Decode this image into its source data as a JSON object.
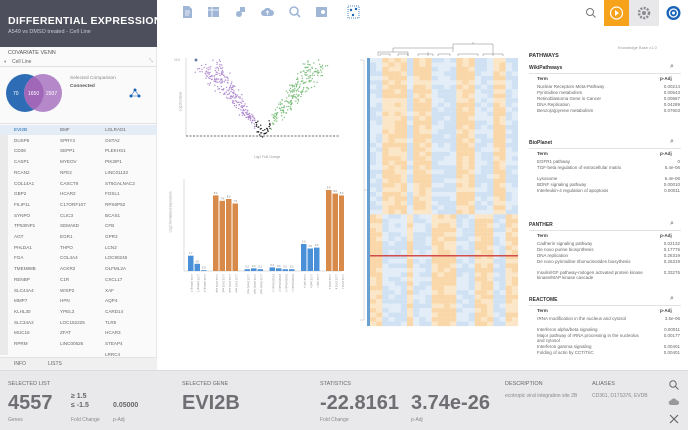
{
  "app": {
    "title": "DIFFERENTIAL EXPRESSION",
    "subtitle": "A549 vs DMSO treated - Cell Line"
  },
  "sidebar": {
    "venn_heading": "COVARIATE VENN",
    "cell_dropdown": "Cell Line",
    "venn": {
      "left": "70",
      "center": "1650",
      "right": "2937"
    },
    "selected_comparison_label": "Selected Comparison",
    "selected_comparison_value": "Connected",
    "genes_col1": [
      "EVI2B",
      "DUSP6",
      "CD36",
      "CASP1",
      "RCAN2",
      "COL14A1",
      "GBP2",
      "FILIP1L",
      "SYNPO",
      "TP53INP1",
      "AGT",
      "PHLDA1",
      "FGA",
      "TMEM88B",
      "RENBP",
      "SLC44A4",
      "MMP7",
      "KLHL30",
      "SLC34A2",
      "MUC16",
      "RPRM"
    ],
    "genes_col2": [
      "BMF",
      "SPRY4",
      "SEPP1",
      "MYEOV",
      "NFE2",
      "CASCT9",
      "HCAR2",
      "C17ORF107",
      "CLIC3",
      "SEMA6D",
      "EGR1",
      "THPO",
      "COL4A4",
      "ACKR2",
      "C1R",
      "WISP2",
      "HPN",
      "YPEL3",
      "LOC152225",
      "ZFAT",
      "LINC00626"
    ],
    "genes_col3": [
      "LGLRAD1",
      "OSTA2",
      "PLEKHS1",
      "PIK3IP1",
      "LINC01133",
      "ST6GALNAC2",
      "FOSL1",
      "RPS6P52",
      "BCAS1",
      "CFB",
      "GPR3",
      "LCN2",
      "LOC90246",
      "OLFML2A",
      "CXCL17",
      "XAF",
      "AQP4",
      "CARD14",
      "TLR5",
      "HCAR3",
      "STEAP4",
      "LRRC4"
    ],
    "tabs": [
      "INFO",
      "LISTS"
    ]
  },
  "toolbar": {
    "icons": [
      "document-icon",
      "table-icon",
      "shapes-icon",
      "cloud-upload-icon",
      "search-zoom-icon",
      "settings-panel-icon",
      "network-icon"
    ],
    "right": [
      "search-icon",
      "play-icon",
      "gear-icon",
      "logo-icon"
    ],
    "colors": {
      "accent": "#f7a21b",
      "brand": "#1a63b6"
    }
  },
  "volcano": {
    "xlabel": "Log2 Fold Change",
    "ylabel": "-Log10 pValue",
    "ytop": "10.0",
    "note": "Knowledge Base v1.0"
  },
  "bars": {
    "chart_data": {
      "type": "bar",
      "ylabel": "Log2 Normalised Expression",
      "groups": [
        {
          "categories": [
            "LUDE (ctrl/rep) 1",
            "LUDE (ctrl/rep) 2",
            "LUDE (ctrl/rep) 3"
          ],
          "values": [
            1.7,
            0.8,
            0.0
          ],
          "color": "#4a90d9"
        },
        {
          "categories": [
            "LUDE EVS1 rep1",
            "LUDE EVS1 rep2",
            "LUDE EVS1 rep3",
            "LUDE EVS1 rep4"
          ],
          "values": [
            8.4,
            7.8,
            8.0,
            7.5
          ],
          "color": "#d88a4a"
        },
        {
          "categories": [
            "LUDE (Mock) rep1",
            "LUDE (Mock) rep2",
            "LUDE (Mock) rep3"
          ],
          "values": [
            0.2,
            0.3,
            0.2
          ],
          "color": "#4a90d9"
        },
        {
          "categories": [
            "EVS1B (Mock) 1",
            "EVS1B (Mock) 2",
            "EVS1B (Mock) 3",
            "EVS1B (Mock) 4"
          ],
          "values": [
            0.4,
            0.3,
            0.2,
            0.2
          ],
          "color": "#4a90d9"
        },
        {
          "categories": [
            "LUDE (ctrl) a",
            "LUDE (ctrl) b",
            "LUDE (ctrl) c"
          ],
          "values": [
            3.0,
            2.5,
            2.6
          ],
          "color": "#4a90d9"
        },
        {
          "categories": [
            "LUDE EVS1 a",
            "LUDE EVS1 b",
            "LUDE EVS1 c"
          ],
          "values": [
            9.0,
            8.6,
            8.4
          ],
          "color": "#d88a4a"
        }
      ]
    }
  },
  "pathways": {
    "title": "PATHWAYS",
    "tables": [
      {
        "name": "WikiPathways",
        "head": [
          "Term",
          "p-Adj"
        ],
        "rows": [
          [
            "Nuclear Receptors Meta-Pathway",
            "0.00214"
          ],
          [
            "Pyrimidine metabolism",
            "0.00543"
          ],
          [
            "Retinoblastoma Gene in Cancer",
            "0.00667"
          ],
          [
            "DNA Replication",
            "0.04289"
          ],
          [
            "Benzo(a)pyrene metabolism",
            "0.07603"
          ]
        ]
      },
      {
        "name": "BioPlanet",
        "head": [
          "Term",
          "p-Adj"
        ],
        "rows": [
          [
            "EGFR1 pathway",
            "0"
          ],
          [
            "TGF-beta regulation of extracellular matrix",
            "5.4e-06"
          ],
          [
            "Lysosome",
            "6.4e-06"
          ],
          [
            "BDNF signaling pathway",
            "0.00010"
          ],
          [
            "Interleukin-4 regulation of apoptosis",
            "0.00011"
          ]
        ]
      },
      {
        "name": "PANTHER",
        "head": [
          "Term",
          "p-Adj"
        ],
        "rows": [
          [
            "Cadherin signaling pathway",
            "0.02132"
          ],
          [
            "De novo purine biosynthesis",
            "0.17776"
          ],
          [
            "DNA replication",
            "0.26319"
          ],
          [
            "De novo pyrimidine ribonucleotides biosythesis",
            "0.26319"
          ],
          [
            "Insulin/IGF pathway-mitogen activated protein kinase kinase/MAP kinase cascade",
            "0.33276"
          ]
        ]
      },
      {
        "name": "REACTOME",
        "head": [
          "Term",
          "p-Adj"
        ],
        "rows": [
          [
            "rRNA modification in the nucleus and cytosol",
            "3.5e-06"
          ],
          [
            "Interferon alpha/beta signaling",
            "0.00011"
          ],
          [
            "Major pathway of rRNA processing in the nucleolus and cytosol",
            "0.00177"
          ],
          [
            "Interferon gamma signaling",
            "0.00401"
          ],
          [
            "Folding of actin by CCT/TriC",
            "0.00401"
          ]
        ]
      }
    ]
  },
  "footer": {
    "selected_list": {
      "label": "SELECTED LIST",
      "count": "4557",
      "count_sub": "Genes",
      "fc_up": "≥ 1.5",
      "fc_down": "≤ -1.5",
      "fc_sub": "Fold Change",
      "p": "0.05000",
      "p_sub": "p-Adj"
    },
    "selected_gene": {
      "label": "SELECTED GENE",
      "value": "EVI2B"
    },
    "statistics": {
      "label": "STATISTICS",
      "fc": "-22.8161",
      "fc_sub": "Fold Change",
      "p": "3.74e-26",
      "p_sub": "p-Adj"
    },
    "description": {
      "label": "DESCRIPTION",
      "value": "ecotropic viral integration site 2B"
    },
    "aliases": {
      "label": "ALIASES",
      "value": "CD361, D17S376, EVDB"
    }
  }
}
